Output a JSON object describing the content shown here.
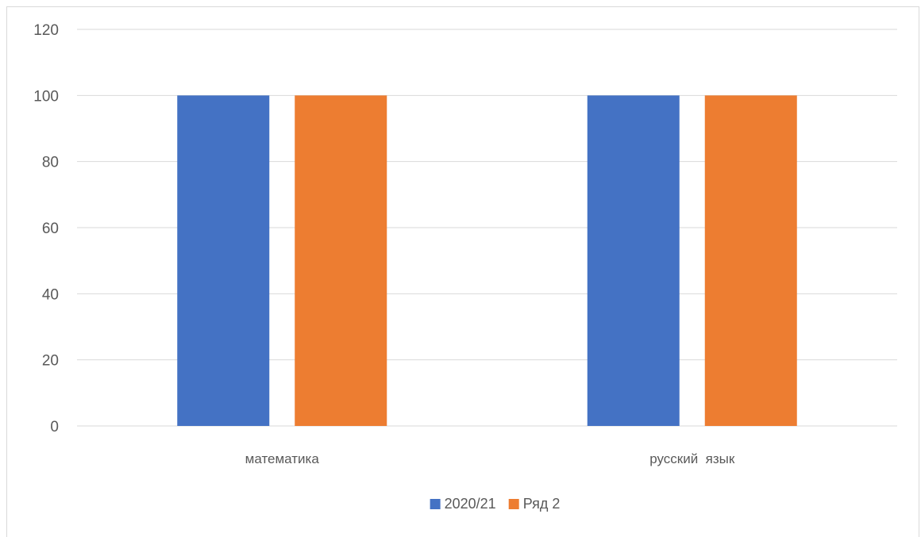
{
  "chart_data": {
    "type": "bar",
    "categories": [
      "математика",
      "русский  язык"
    ],
    "series": [
      {
        "name": "2020/21",
        "values": [
          100,
          100
        ],
        "color": "#4472c4"
      },
      {
        "name": "Ряд 2",
        "values": [
          100,
          100
        ],
        "color": "#ed7d31"
      }
    ],
    "ylim": [
      0,
      120
    ],
    "yticks": [
      0,
      20,
      40,
      60,
      80,
      100,
      120
    ],
    "grid": true,
    "legend_position": "bottom"
  }
}
